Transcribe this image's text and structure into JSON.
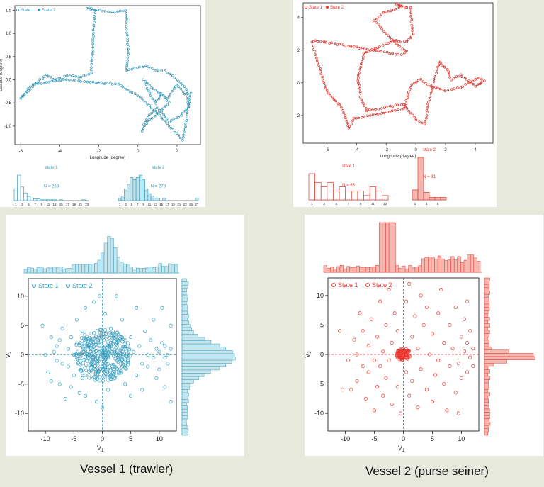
{
  "colors": {
    "vessel1": "#3a9fbf",
    "vessel1_fill": "#c6e6ee",
    "vessel2": "#e8332a",
    "vessel2_fill": "#f6b9b2",
    "axis": "#222222"
  },
  "captions": {
    "vessel1": "Vessel 1 (trawler)",
    "vessel2": "Vessel 2 (purse seiner)"
  },
  "chart_data": [
    {
      "id": "v1_track",
      "type": "line",
      "legend": [
        "State 1",
        "State 2"
      ],
      "legend_position": "top-left",
      "xlabel": "Longitude (degree)",
      "ylabel": "Latitude (degree)",
      "xlim": [
        -6.3,
        3.2
      ],
      "ylim": [
        -1.4,
        1.6
      ],
      "xticks": [
        -6,
        -4,
        -2,
        0,
        2
      ],
      "yticks": [
        -1.0,
        -0.5,
        0.0,
        0.5,
        1.0,
        1.5
      ],
      "ytick_labels": [
        "-1.0",
        "-0.5",
        "0.0",
        "0.5",
        "1.0",
        "1.5"
      ],
      "x": [
        -6.0,
        -5.5,
        -5.0,
        -4.7,
        -4.2,
        -3.6,
        -2.9,
        -2.4,
        -2.2,
        -2.6,
        -2.1,
        -1.2,
        -0.6,
        -0.5,
        -0.6,
        -0.2,
        0.4,
        0.9,
        1.4,
        2.0,
        2.5,
        2.6,
        2.1,
        1.6,
        1.0,
        0.5,
        0.2,
        0.5,
        1.1,
        1.6,
        1.2,
        0.9,
        0.6,
        0.3,
        0.8,
        1.5,
        2.0,
        2.4,
        2.7,
        2.3,
        1.4,
        0.2,
        -1.0,
        -2.3,
        -3.8,
        -5.4,
        -6.0
      ],
      "y": [
        -0.4,
        -0.2,
        0.0,
        0.1,
        0.0,
        0.1,
        0.05,
        0.15,
        1.5,
        1.55,
        1.5,
        1.45,
        1.5,
        0.6,
        0.2,
        0.25,
        0.3,
        0.2,
        0.2,
        0.0,
        -0.2,
        -0.6,
        -0.8,
        -0.9,
        -0.6,
        -0.8,
        -1.1,
        -0.9,
        -0.7,
        -0.5,
        -0.3,
        -0.5,
        -0.3,
        0.0,
        -0.2,
        -0.4,
        -0.1,
        -0.3,
        -0.3,
        -1.3,
        -0.9,
        -0.4,
        -0.1,
        -0.05,
        0.0,
        -0.1,
        -0.4
      ]
    },
    {
      "id": "v1_hist",
      "type": "bar",
      "panels": [
        {
          "title": "state 1",
          "annotation": "N = 263",
          "tick_labels": [
            "1",
            "3",
            "5",
            "7",
            "9",
            "11",
            "13",
            "15",
            "17",
            "19",
            "21",
            "23"
          ],
          "values": [
            14,
            30,
            16,
            9,
            5,
            3,
            2,
            2,
            1,
            1,
            1,
            1,
            1,
            0,
            1,
            0,
            0,
            0,
            0,
            0,
            0,
            1,
            0
          ]
        },
        {
          "title": "state 2",
          "annotation": "N = 279",
          "tick_labels": [
            "1",
            "3",
            "5",
            "7",
            "9",
            "11",
            "13",
            "15",
            "17",
            "19",
            "21",
            "23",
            "25",
            "27"
          ],
          "values": [
            1,
            2,
            5,
            7,
            10,
            9,
            10,
            11,
            9,
            5,
            3,
            2,
            1,
            1,
            0,
            1,
            0,
            0,
            0,
            0,
            0,
            0,
            0,
            0,
            0,
            0,
            1
          ]
        }
      ]
    },
    {
      "id": "v2_track",
      "type": "line",
      "legend": [
        "State 1",
        "State 2"
      ],
      "legend_position": "top-left",
      "xlabel": "Longitude (degree)",
      "ylabel": "Latitude (degree)",
      "xlim": [
        -7.6,
        5.2
      ],
      "ylim": [
        -3.7,
        4.9
      ],
      "xticks": [
        -6,
        -4,
        -2,
        0,
        2,
        4
      ],
      "yticks": [
        -2,
        0,
        2,
        4
      ],
      "x": [
        -7.0,
        -6.8,
        -1.0,
        -0.6,
        -1.2,
        -2.8,
        -2.2,
        -1.7,
        -1.0,
        -1.3,
        -0.4,
        -0.2,
        -0.6,
        -1.5,
        -3.5,
        -3.9,
        -3.7,
        -3.3,
        -0.8,
        0.0,
        0.6,
        0.9,
        1.3,
        1.6,
        2.1,
        2.4,
        3.0,
        4.0,
        4.6,
        4.2,
        3.0,
        2.0,
        1.0,
        0.3,
        -0.3,
        -0.8,
        -2.0,
        -4.2,
        -4.5,
        -5.0,
        -6.0,
        -7.0
      ],
      "y": [
        2.5,
        2.6,
        1.7,
        1.9,
        2.3,
        3.8,
        4.3,
        4.4,
        4.7,
        4.8,
        4.6,
        3.0,
        2.5,
        2.6,
        1.8,
        0.3,
        -1.0,
        -1.7,
        -1.3,
        -2.3,
        -2.5,
        -1.0,
        0.4,
        1.3,
        0.8,
        0.2,
        0.5,
        -0.2,
        0.1,
        0.3,
        -0.3,
        -0.5,
        -0.2,
        0.2,
        -0.1,
        -1.6,
        -1.8,
        -2.2,
        -2.8,
        -1.5,
        -0.5,
        2.4
      ]
    },
    {
      "id": "v2_hist",
      "type": "bar",
      "panels": [
        {
          "title": "state 1",
          "annotation": "N = 63",
          "tick_labels": [
            "1",
            "3",
            "5",
            "7",
            "9",
            "11",
            "13"
          ],
          "values": [
            6,
            4,
            3,
            4,
            2,
            3,
            2,
            2,
            2,
            1,
            3,
            2,
            1
          ]
        },
        {
          "title": "state 2",
          "annotation": "N = 31",
          "tick_labels": [
            "1",
            "3",
            "5"
          ],
          "values": [
            4,
            17,
            3,
            1,
            1,
            1
          ]
        }
      ]
    },
    {
      "id": "v1_scatter",
      "type": "scatter",
      "legend": [
        "State 1",
        "State 2"
      ],
      "legend_position": "top-left",
      "xlabel": "V1",
      "ylabel": "V2",
      "xlim": [
        -13,
        13
      ],
      "ylim": [
        -13,
        13
      ],
      "xticks": [
        -10,
        -5,
        0,
        5,
        10
      ],
      "yticks": [
        -10,
        -5,
        0,
        5,
        10
      ],
      "points": [
        [
          -10.5,
          5
        ],
        [
          -10,
          0
        ],
        [
          -9.5,
          -3
        ],
        [
          -9,
          -4.5
        ],
        [
          -9,
          3
        ],
        [
          -8.5,
          0.5
        ],
        [
          -8,
          1.5
        ],
        [
          -8,
          -1
        ],
        [
          -7.5,
          -5
        ],
        [
          -7.5,
          2.5
        ],
        [
          -7,
          4.5
        ],
        [
          -7,
          -1.5
        ],
        [
          -6.5,
          -7.5
        ],
        [
          -6,
          1
        ],
        [
          -6,
          -2
        ],
        [
          -5.5,
          3
        ],
        [
          -5.5,
          -5.5
        ],
        [
          -5,
          0
        ],
        [
          -5,
          -3.5
        ],
        [
          -4.5,
          2
        ],
        [
          -4.5,
          6
        ],
        [
          -4,
          -1
        ],
        [
          -4,
          -6.5
        ],
        [
          -3.5,
          4
        ],
        [
          -3.5,
          -4
        ],
        [
          -3,
          8
        ],
        [
          -3,
          -7
        ],
        [
          -2.5,
          1.5
        ],
        [
          -2,
          -1.5
        ],
        [
          -1.5,
          9
        ],
        [
          -1,
          -8
        ],
        [
          -0.5,
          10
        ],
        [
          0,
          -9
        ],
        [
          0.5,
          7
        ],
        [
          1,
          -6
        ],
        [
          1.5,
          4.5
        ],
        [
          2,
          -2.5
        ],
        [
          2.5,
          10
        ],
        [
          3,
          -3
        ],
        [
          3.5,
          6
        ],
        [
          4,
          -5
        ],
        [
          4.5,
          2
        ],
        [
          5,
          -7
        ],
        [
          5,
          3
        ],
        [
          5.5,
          0.5
        ],
        [
          6,
          -3.5
        ],
        [
          6,
          8
        ],
        [
          6.5,
          1.5
        ],
        [
          7,
          -1.5
        ],
        [
          7,
          -6
        ],
        [
          7.5,
          4
        ],
        [
          8,
          0
        ],
        [
          8,
          -2
        ],
        [
          8.5,
          2.5
        ],
        [
          9,
          -0.5
        ],
        [
          9,
          6
        ],
        [
          9.5,
          1
        ],
        [
          9.5,
          -4
        ],
        [
          10,
          0.5
        ],
        [
          10,
          -2.5
        ],
        [
          10.5,
          2
        ],
        [
          10.5,
          8
        ],
        [
          11,
          -0.5
        ],
        [
          11,
          1.5
        ],
        [
          11.5,
          0
        ],
        [
          11.5,
          -1.5
        ],
        [
          12,
          1
        ],
        [
          12,
          5
        ],
        [
          12,
          -8
        ],
        [
          11,
          -5.5
        ]
      ],
      "dense_cluster": {
        "state": "State 1",
        "center": [
          0,
          0
        ],
        "radius": [
          5,
          4.5
        ]
      }
    },
    {
      "id": "v2_scatter",
      "type": "scatter",
      "legend": [
        "State 1",
        "State 2"
      ],
      "legend_position": "top-left",
      "xlabel": "V1",
      "ylabel": "V2",
      "xlim": [
        -13,
        13
      ],
      "ylim": [
        -13,
        13
      ],
      "xticks": [
        -10,
        -5,
        0,
        5,
        10
      ],
      "yticks": [
        -10,
        -5,
        0,
        5,
        10
      ],
      "points": [
        [
          -9.5,
          -1
        ],
        [
          -9,
          -6
        ],
        [
          -8.5,
          2.5
        ],
        [
          -8,
          0
        ],
        [
          -8,
          -4.5
        ],
        [
          -7.5,
          7
        ],
        [
          -7,
          -2
        ],
        [
          -7,
          4
        ],
        [
          -6.5,
          -7.5
        ],
        [
          -6,
          1.5
        ],
        [
          -6,
          -3
        ],
        [
          -5.5,
          6
        ],
        [
          -5,
          -1
        ],
        [
          -5,
          -9.5
        ],
        [
          -4.5,
          3
        ],
        [
          -4.5,
          -5.5
        ],
        [
          -4,
          9
        ],
        [
          -4,
          -2
        ],
        [
          -3.5,
          0.5
        ],
        [
          -3.5,
          -7
        ],
        [
          -3,
          5
        ],
        [
          -3,
          -4
        ],
        [
          -2.5,
          11
        ],
        [
          -2.5,
          -1
        ],
        [
          -2,
          2
        ],
        [
          -2,
          -8.5
        ],
        [
          -1.5,
          7
        ],
        [
          -1,
          -5.5
        ],
        [
          -1,
          4
        ],
        [
          -0.5,
          -10
        ],
        [
          0.5,
          9
        ],
        [
          0.5,
          -3
        ],
        [
          1,
          12
        ],
        [
          1,
          -7
        ],
        [
          1.5,
          3
        ],
        [
          1.5,
          -4.5
        ],
        [
          2,
          6.5
        ],
        [
          2.5,
          -9
        ],
        [
          2.5,
          1
        ],
        [
          3,
          10
        ],
        [
          3,
          -2.5
        ],
        [
          3.5,
          5
        ],
        [
          4,
          -6
        ],
        [
          4,
          8
        ],
        [
          4.5,
          0
        ],
        [
          5,
          -8
        ],
        [
          5,
          3.5
        ],
        [
          5.5,
          -3.5
        ],
        [
          6,
          7
        ],
        [
          6,
          -1
        ],
        [
          6.5,
          11
        ],
        [
          7,
          -5
        ],
        [
          7,
          2
        ],
        [
          7.5,
          -9.5
        ],
        [
          8,
          5
        ],
        [
          8,
          -2
        ],
        [
          8.5,
          1
        ],
        [
          9,
          -6.5
        ],
        [
          9,
          8
        ],
        [
          9.5,
          -1.5
        ],
        [
          10,
          3
        ],
        [
          10,
          -4
        ],
        [
          10.5,
          6
        ],
        [
          10.5,
          0.5
        ],
        [
          11,
          -3
        ],
        [
          11,
          2
        ],
        [
          11.5,
          -0.5
        ],
        [
          11.5,
          4
        ],
        [
          12,
          1
        ],
        [
          12,
          -2
        ],
        [
          11,
          9
        ],
        [
          9.5,
          -10
        ],
        [
          -11,
          4
        ],
        [
          -10.5,
          -6
        ]
      ],
      "dense_cluster": {
        "state": "State 1",
        "center": [
          0,
          0
        ],
        "radius": [
          1.2,
          1.0
        ]
      }
    }
  ]
}
